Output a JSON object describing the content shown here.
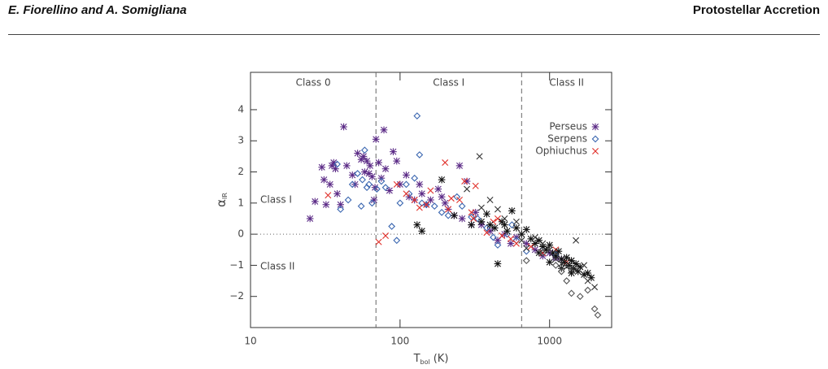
{
  "header": {
    "authors": "E. Fiorellino and A. Somigliana",
    "title": "Protostellar Accretion"
  },
  "chart_data": {
    "type": "scatter",
    "xlabel": "T",
    "xlabel_subscript": "bol",
    "xlabel_unit": "(K)",
    "ylabel": "α",
    "ylabel_subscript": "IR",
    "xscale": "log",
    "xlim": [
      10,
      2600
    ],
    "xticks": [
      10,
      100,
      1000
    ],
    "ylim": [
      -3,
      5.2
    ],
    "yticks": [
      {
        "value": -2,
        "label": "−2"
      },
      {
        "value": -1,
        "label": "−1"
      },
      0,
      1,
      2,
      3,
      4
    ],
    "vlines": [
      69,
      650
    ],
    "hlines": [
      0
    ],
    "region_labels_top": [
      "Class 0",
      "Class I",
      "Class II"
    ],
    "region_labels_left": [
      "Class I",
      "Class II"
    ],
    "legend": "upper right",
    "series": [
      {
        "name": "Perseus",
        "color": "#5b2a86",
        "marker": "asterisk",
        "x": [
          25,
          27,
          30,
          31,
          32,
          34,
          35,
          36,
          37,
          38,
          40,
          42,
          44,
          48,
          50,
          52,
          55,
          57,
          58,
          60,
          62,
          63,
          65,
          67,
          68,
          69,
          72,
          75,
          78,
          80,
          85,
          90,
          95,
          100,
          110,
          115,
          125,
          135,
          140,
          150,
          160,
          180,
          190,
          200,
          210,
          230,
          250,
          260,
          280,
          300,
          320,
          350,
          400,
          450,
          500,
          550,
          600,
          700,
          800,
          900,
          1000,
          1100,
          1200
        ],
        "y": [
          0.5,
          1.05,
          2.15,
          1.75,
          0.95,
          1.6,
          2.2,
          2.3,
          2.1,
          1.3,
          0.95,
          3.45,
          2.2,
          1.9,
          1.6,
          2.6,
          2.4,
          2.5,
          2.0,
          2.35,
          1.95,
          2.2,
          1.85,
          1.1,
          1.5,
          3.05,
          2.3,
          1.8,
          3.35,
          2.1,
          1.4,
          2.65,
          2.35,
          1.6,
          1.9,
          1.2,
          1.1,
          1.6,
          1.3,
          0.95,
          1.1,
          1.45,
          1.2,
          1.0,
          0.8,
          0.6,
          2.2,
          0.5,
          1.7,
          0.3,
          0.7,
          0.3,
          0.1,
          -0.2,
          0.0,
          -0.3,
          -0.1,
          -0.3,
          -0.5,
          -0.7,
          -0.6,
          -0.75,
          -0.8
        ]
      },
      {
        "name": "Serpens",
        "color": "#3a66b0",
        "marker": "diamond",
        "x": [
          38,
          40,
          45,
          48,
          52,
          55,
          56,
          58,
          60,
          62,
          65,
          70,
          75,
          80,
          88,
          95,
          100,
          110,
          115,
          125,
          130,
          135,
          140,
          150,
          170,
          190,
          210,
          240,
          260,
          300,
          330,
          380,
          420,
          450,
          520,
          560,
          600,
          700,
          900,
          1100
        ],
        "y": [
          2.25,
          0.8,
          1.1,
          1.6,
          1.95,
          0.9,
          1.75,
          2.7,
          1.5,
          1.6,
          1.0,
          1.45,
          1.7,
          1.5,
          0.25,
          -0.2,
          1.0,
          1.6,
          1.3,
          1.8,
          3.8,
          2.55,
          1.0,
          0.95,
          0.9,
          0.7,
          0.6,
          1.2,
          0.9,
          0.55,
          0.5,
          0.2,
          -0.1,
          -0.35,
          0.0,
          0.3,
          -0.2,
          -0.55,
          -0.5,
          -0.65
        ]
      },
      {
        "name": "Ophiuchus",
        "color": "#e0302a",
        "marker": "cross",
        "x": [
          33,
          72,
          80,
          95,
          110,
          125,
          135,
          150,
          160,
          200,
          210,
          220,
          250,
          270,
          300,
          310,
          320,
          380,
          420,
          450,
          480,
          550,
          600,
          750,
          900,
          1100,
          1300
        ],
        "y": [
          1.25,
          -0.25,
          -0.05,
          1.6,
          1.3,
          1.1,
          0.85,
          0.95,
          1.4,
          2.3,
          0.8,
          1.15,
          1.1,
          1.7,
          0.7,
          0.5,
          1.55,
          0.05,
          0.4,
          0.5,
          -0.05,
          -0.15,
          -0.3,
          -0.4,
          -0.6,
          -0.5,
          -0.9
        ]
      },
      {
        "color": "#111111",
        "marker": "asterisk",
        "x": [
          130,
          140,
          190,
          230,
          300,
          350,
          380,
          400,
          430,
          450,
          480,
          500,
          520,
          560,
          600,
          650,
          700,
          750,
          800,
          850,
          900,
          950,
          1000,
          1050,
          1100,
          1150,
          1200,
          1250,
          1300,
          1350,
          1400,
          1450,
          1500,
          1550,
          1600,
          1700,
          1800,
          1900,
          850,
          1000,
          1200,
          1400
        ],
        "y": [
          0.3,
          0.1,
          1.75,
          0.6,
          0.3,
          0.4,
          0.65,
          0.3,
          0.2,
          -0.95,
          0.4,
          0.3,
          0.1,
          0.75,
          0.2,
          0.0,
          0.15,
          -0.15,
          -0.3,
          -0.2,
          -0.4,
          -0.5,
          -0.35,
          -0.6,
          -0.7,
          -0.55,
          -0.8,
          -0.9,
          -0.75,
          -1.0,
          -0.85,
          -1.1,
          -0.95,
          -1.2,
          -1.05,
          -1.3,
          -1.25,
          -1.4,
          -0.6,
          -0.9,
          -1.1,
          -1.25
        ]
      },
      {
        "color": "#333333",
        "marker": "cross",
        "x": [
          340,
          280,
          350,
          400,
          450,
          500,
          600,
          650,
          700,
          800,
          900,
          1000,
          1100,
          1200,
          1300,
          1400,
          1500,
          1700,
          1800,
          2000
        ],
        "y": [
          2.5,
          1.45,
          0.85,
          1.1,
          0.8,
          0.5,
          0.4,
          -0.2,
          -0.45,
          -0.1,
          -0.3,
          -0.5,
          -0.8,
          -0.95,
          -1.05,
          -1.15,
          -0.2,
          -1.0,
          -1.5,
          -1.7
        ]
      },
      {
        "color": "#555555",
        "marker": "diamond",
        "x": [
          700,
          900,
          1100,
          1300,
          1400,
          1600,
          1800,
          2000,
          2100,
          1200
        ],
        "y": [
          -0.85,
          -0.6,
          -1.0,
          -1.5,
          -1.9,
          -2.0,
          -1.8,
          -2.4,
          -2.6,
          -1.2
        ]
      }
    ]
  }
}
